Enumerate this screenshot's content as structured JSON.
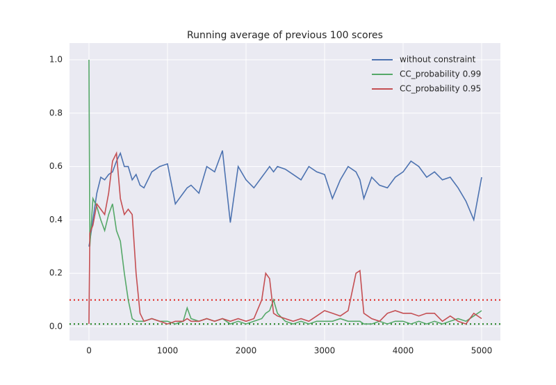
{
  "chart_data": {
    "type": "line",
    "title": "Running average of previous 100 scores",
    "x": [
      0,
      10,
      50,
      100,
      150,
      200,
      250,
      300,
      350,
      400,
      450,
      500,
      550,
      600,
      650,
      700,
      800,
      900,
      1000,
      1100,
      1200,
      1250,
      1300,
      1400,
      1500,
      1600,
      1700,
      1800,
      1900,
      2000,
      2100,
      2200,
      2250,
      2300,
      2350,
      2400,
      2500,
      2600,
      2700,
      2800,
      2900,
      3000,
      3100,
      3200,
      3300,
      3400,
      3450,
      3500,
      3600,
      3700,
      3800,
      3900,
      4000,
      4100,
      4200,
      4300,
      4400,
      4500,
      4600,
      4700,
      4800,
      4900,
      5000
    ],
    "series": [
      {
        "name": "without constraint",
        "color": "#4c72b0",
        "values": [
          0.3,
          0.32,
          0.4,
          0.5,
          0.56,
          0.55,
          0.57,
          0.58,
          0.62,
          0.65,
          0.6,
          0.6,
          0.55,
          0.57,
          0.53,
          0.52,
          0.58,
          0.6,
          0.61,
          0.46,
          0.5,
          0.52,
          0.53,
          0.5,
          0.6,
          0.58,
          0.66,
          0.39,
          0.6,
          0.55,
          0.52,
          0.56,
          0.58,
          0.6,
          0.58,
          0.6,
          0.59,
          0.57,
          0.55,
          0.6,
          0.58,
          0.57,
          0.48,
          0.55,
          0.6,
          0.58,
          0.55,
          0.48,
          0.56,
          0.53,
          0.52,
          0.56,
          0.58,
          0.62,
          0.6,
          0.56,
          0.58,
          0.55,
          0.56,
          0.52,
          0.47,
          0.4,
          0.56
        ]
      },
      {
        "name": "CC_probability 0.99",
        "color": "#55a868",
        "values": [
          1.0,
          0.3,
          0.48,
          0.45,
          0.4,
          0.36,
          0.42,
          0.46,
          0.36,
          0.32,
          0.2,
          0.1,
          0.03,
          0.02,
          0.02,
          0.02,
          0.03,
          0.02,
          0.02,
          0.01,
          0.02,
          0.07,
          0.03,
          0.02,
          0.03,
          0.02,
          0.03,
          0.01,
          0.02,
          0.01,
          0.02,
          0.03,
          0.05,
          0.06,
          0.1,
          0.05,
          0.02,
          0.01,
          0.02,
          0.01,
          0.02,
          0.02,
          0.02,
          0.03,
          0.02,
          0.02,
          0.02,
          0.01,
          0.01,
          0.02,
          0.01,
          0.02,
          0.02,
          0.01,
          0.02,
          0.01,
          0.02,
          0.01,
          0.02,
          0.03,
          0.02,
          0.04,
          0.06
        ]
      },
      {
        "name": "CC_probability 0.95",
        "color": "#c44e52",
        "values": [
          0.01,
          0.35,
          0.38,
          0.46,
          0.44,
          0.42,
          0.5,
          0.62,
          0.65,
          0.48,
          0.42,
          0.44,
          0.42,
          0.2,
          0.05,
          0.02,
          0.03,
          0.02,
          0.01,
          0.02,
          0.02,
          0.03,
          0.02,
          0.02,
          0.03,
          0.02,
          0.03,
          0.02,
          0.03,
          0.02,
          0.03,
          0.1,
          0.2,
          0.18,
          0.05,
          0.04,
          0.03,
          0.02,
          0.03,
          0.02,
          0.04,
          0.06,
          0.05,
          0.04,
          0.06,
          0.2,
          0.21,
          0.05,
          0.03,
          0.02,
          0.05,
          0.06,
          0.05,
          0.05,
          0.04,
          0.05,
          0.05,
          0.02,
          0.04,
          0.02,
          0.01,
          0.05,
          0.03
        ]
      }
    ],
    "hlines": [
      {
        "value": 0.1,
        "color": "#e0201b"
      },
      {
        "value": 0.01,
        "color": "#1a7f1a"
      }
    ],
    "xlim": [
      -248,
      5239
    ],
    "ylim": [
      -0.052,
      1.0625
    ],
    "xticks": [
      0,
      1000,
      2000,
      3000,
      4000,
      5000
    ],
    "yticks": [
      {
        "value": 0.0,
        "label": "0.0"
      },
      0.2,
      0.4,
      0.6,
      0.8,
      {
        "value": 1.0,
        "label": "1.0"
      }
    ],
    "grid": true,
    "legend": "upper right"
  }
}
